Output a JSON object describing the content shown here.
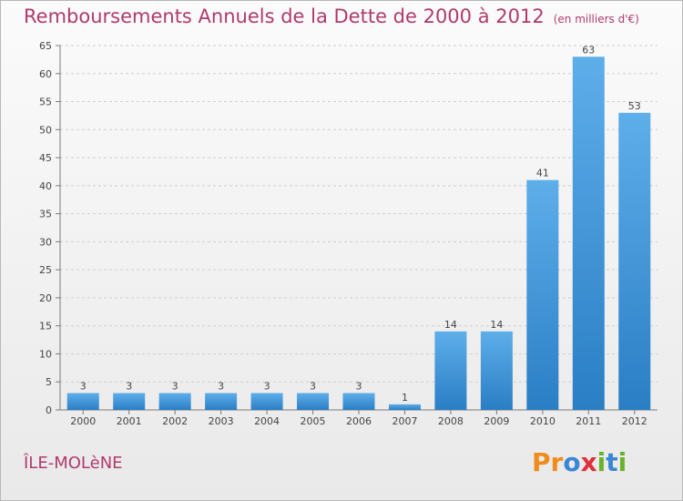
{
  "chart_data": {
    "type": "bar",
    "title": "Remboursements Annuels de la Dette de 2000 à 2012",
    "subtitle": "(en milliers d'€)",
    "categories": [
      "2000",
      "2001",
      "2002",
      "2003",
      "2004",
      "2005",
      "2006",
      "2007",
      "2008",
      "2009",
      "2010",
      "2011",
      "2012"
    ],
    "values": [
      3,
      3,
      3,
      3,
      3,
      3,
      3,
      1,
      14,
      14,
      41,
      63,
      53
    ],
    "ylim": [
      0,
      65
    ],
    "yticks": [
      0,
      5,
      10,
      15,
      20,
      25,
      30,
      35,
      40,
      45,
      50,
      55,
      60,
      65
    ],
    "grid": true,
    "bar_color": "#3d95db"
  },
  "commune": "ÎLE-MOLèNE",
  "brand": {
    "name": "Proxiti",
    "letters": [
      {
        "char": "P",
        "color": "#f08c1e"
      },
      {
        "char": "r",
        "color": "#f08c1e"
      },
      {
        "char": "o",
        "color": "#3b86d6"
      },
      {
        "char": "x",
        "color": "#e0303a"
      },
      {
        "char": "i",
        "color": "#69b22b"
      },
      {
        "char": "t",
        "color": "#3b86d6"
      },
      {
        "char": "i",
        "color": "#69b22b"
      }
    ]
  }
}
